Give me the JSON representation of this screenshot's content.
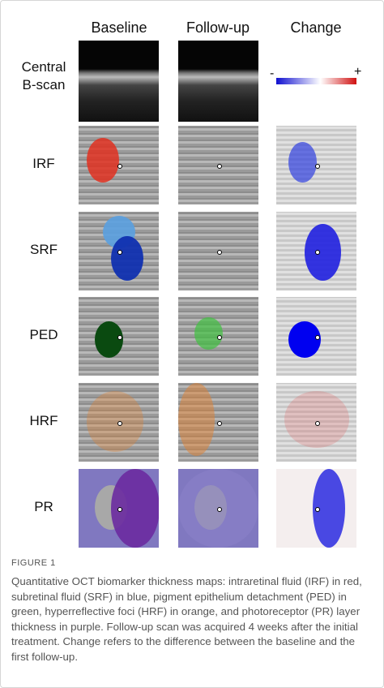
{
  "figure": {
    "columns": [
      "Baseline",
      "Follow-up",
      "Change"
    ],
    "rows": [
      "Central\nB-scan",
      "IRF",
      "SRF",
      "PED",
      "HRF",
      "PR"
    ],
    "colorbar": {
      "min_label": "-",
      "max_label": "+"
    },
    "label": "FIGURE 1",
    "caption": "Quantitative OCT biomarker thickness maps: intraretinal fluid (IRF) in red, subretinal fluid (SRF) in blue, pigment epithelium detachment (PED) in green, hyperreflective foci (HRF) in orange, and photoreceptor (PR) layer thickness in purple. Follow-up scan was acquired 4 weeks after the initial treatment. Change refers to the difference between the baseline and the first follow-up."
  }
}
